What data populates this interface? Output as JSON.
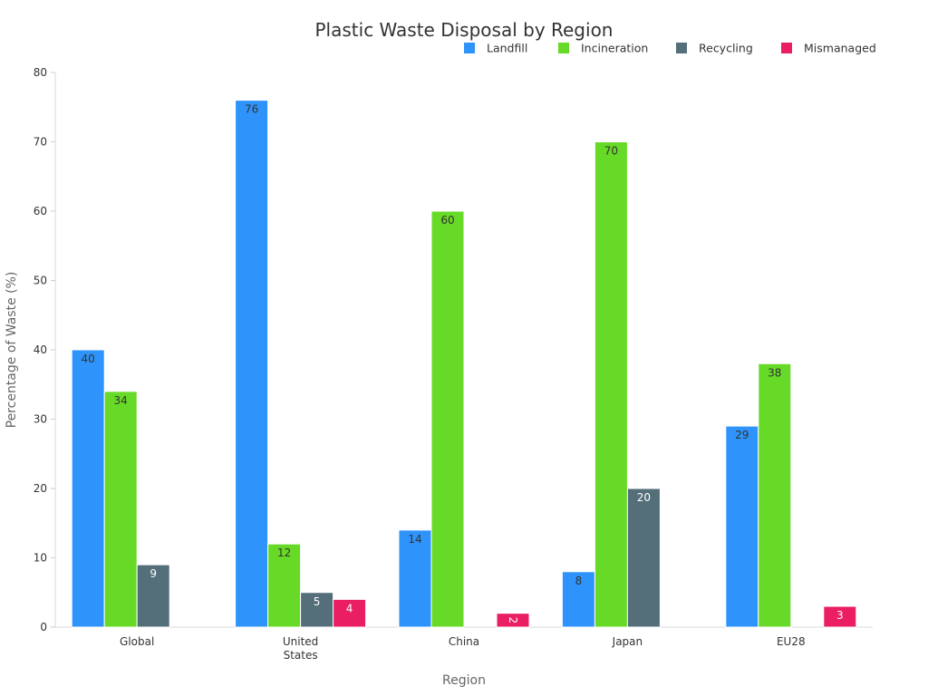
{
  "chart_data": {
    "type": "bar",
    "title": "Plastic Waste Disposal by Region",
    "xlabel": "Region",
    "ylabel": "Percentage of Waste (%)",
    "ylim": [
      0,
      80
    ],
    "yticks": [
      0,
      10,
      20,
      30,
      40,
      50,
      60,
      70,
      80
    ],
    "grid": false,
    "legend_position": "top-right",
    "categories": [
      "Global",
      "United States",
      "China",
      "Japan",
      "EU28"
    ],
    "category_lines": [
      [
        "Global"
      ],
      [
        "United",
        "States"
      ],
      [
        "China"
      ],
      [
        "Japan"
      ],
      [
        "EU28"
      ]
    ],
    "series": [
      {
        "name": "Landfill",
        "color": "#2e93fa",
        "label_color": "#333333",
        "values": [
          40,
          76,
          14,
          8,
          29
        ]
      },
      {
        "name": "Incineration",
        "color": "#66da26",
        "label_color": "#333333",
        "values": [
          34,
          12,
          60,
          70,
          38
        ]
      },
      {
        "name": "Recycling",
        "color": "#546e7a",
        "label_color": "#ffffff",
        "values": [
          9,
          5,
          null,
          20,
          null
        ]
      },
      {
        "name": "Mismanaged",
        "color": "#e91e63",
        "label_color": "#ffffff",
        "values": [
          null,
          4,
          2,
          null,
          3
        ]
      }
    ]
  }
}
